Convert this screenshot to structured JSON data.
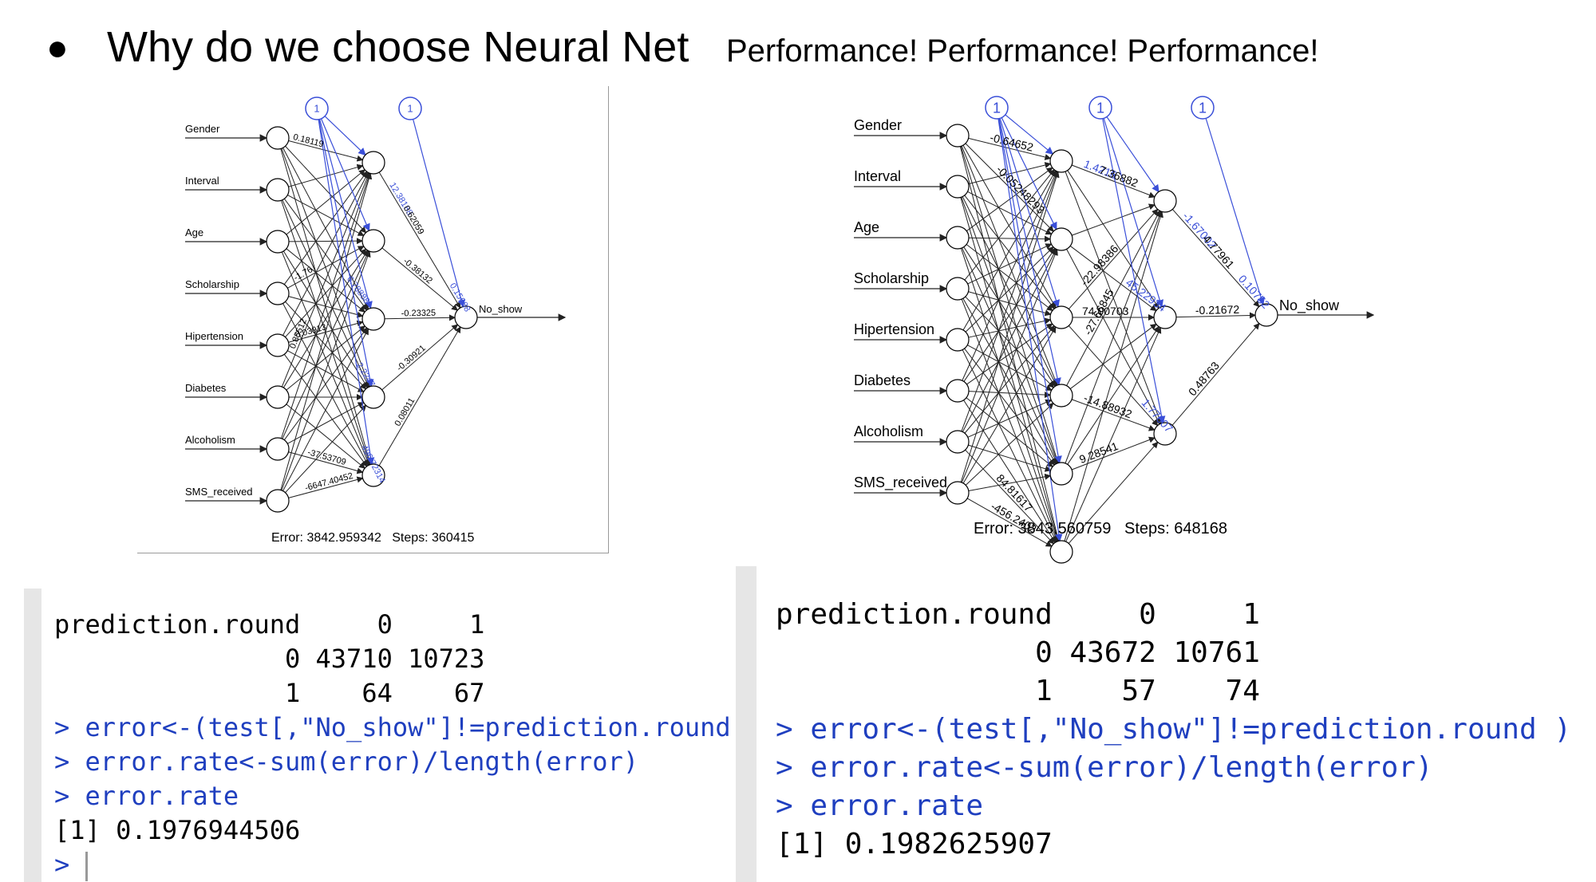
{
  "header": {
    "bullet": "●",
    "title": "Why do we choose Neural Net",
    "subtitle": "Performance! Performance! Performance!"
  },
  "nets": [
    {
      "inputs": [
        "Gender",
        "Interval",
        "Age",
        "Scholarship",
        "Hipertension",
        "Diabetes",
        "Alcoholism",
        "SMS_received"
      ],
      "bias_label": "1",
      "output": "No_show",
      "hidden_layers": [
        5
      ],
      "visible_weights": [
        "12.38188",
        "0.18119",
        "0.62059",
        "-0.38132",
        "-0.23325",
        "-0.30921",
        "0.08011",
        "0.15688",
        "6.78888",
        "2.2247",
        "496.72314",
        "0.85512",
        "-37.53709",
        "-6647.40452",
        "0.03913",
        "-1.76"
      ],
      "error_label": "Error: 3842.959342",
      "steps_label": "Steps: 360415"
    },
    {
      "inputs": [
        "Gender",
        "Interval",
        "Age",
        "Scholarship",
        "Hipertension",
        "Diabetes",
        "Alcoholism",
        "SMS_received"
      ],
      "bias_label": "1",
      "output": "No_show",
      "hidden_layers": [
        6,
        3
      ],
      "visible_weights": [
        "1.4216",
        "-0.64652",
        "7.36882",
        "-1.67002",
        "4.77961",
        "-0.21672",
        "0.48763",
        "0.10752",
        "45.22934",
        "1.77607",
        "74.00703",
        "-14.88932",
        "9.28541",
        "-456.2402",
        "84.81617",
        "-27.66845",
        "-22.98386",
        "-0.05248293"
      ],
      "error_label": "Error: 3843.560759",
      "steps_label": "Steps: 648168"
    }
  ],
  "consoles": [
    {
      "lines": [
        {
          "kind": "out",
          "text": "prediction.round     0     1"
        },
        {
          "kind": "out",
          "text": "               0 43710 10723"
        },
        {
          "kind": "out",
          "text": "               1    64    67"
        },
        {
          "kind": "cmd",
          "text": "> error<-(test[,\"No_show\"]!=prediction.round )"
        },
        {
          "kind": "cmd",
          "text": "> error.rate<-sum(error)/length(error)"
        },
        {
          "kind": "cmd",
          "text": "> error.rate"
        },
        {
          "kind": "out",
          "text": "[1] 0.1976944506"
        },
        {
          "kind": "cmd",
          "text": "> "
        }
      ]
    },
    {
      "lines": [
        {
          "kind": "out",
          "text": "prediction.round     0     1"
        },
        {
          "kind": "out",
          "text": "               0 43672 10761"
        },
        {
          "kind": "out",
          "text": "               1    57    74"
        },
        {
          "kind": "cmd",
          "text": "> error<-(test[,\"No_show\"]!=prediction.round )"
        },
        {
          "kind": "cmd",
          "text": "> error.rate<-sum(error)/length(error)"
        },
        {
          "kind": "cmd",
          "text": "> error.rate"
        },
        {
          "kind": "out",
          "text": "[1] 0.1982625907"
        }
      ]
    }
  ],
  "colors": {
    "bias": "#3a4fd8",
    "edge": "#222222",
    "console_cmd": "#1f3fbf"
  }
}
